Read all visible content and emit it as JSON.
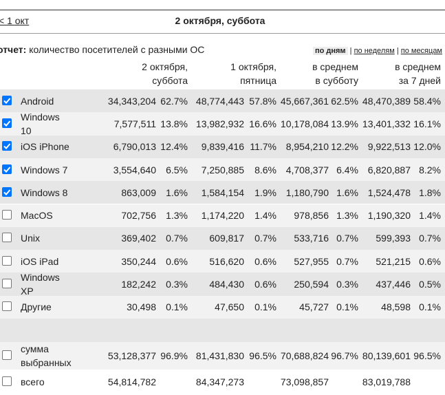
{
  "nav": {
    "prev": "< 1 окт",
    "title": "2 октября, суббота"
  },
  "report": {
    "label": "отчет:",
    "text": "количество посетителей с разными ОС",
    "periods": [
      "по дням",
      "по неделям",
      "по месяцам"
    ],
    "separator": "|"
  },
  "table": {
    "columns": [
      [
        "2 октября,",
        "суббота"
      ],
      [
        "1 октября,",
        "пятница"
      ],
      [
        "в среднем",
        "в субботу"
      ],
      [
        "в среднем",
        "за 7 дней"
      ]
    ],
    "rows": [
      {
        "name": "Android",
        "checked": true,
        "values": [
          "34,343,204",
          "48,774,443",
          "45,667,361",
          "48,470,389"
        ],
        "shares": [
          "62.7%",
          "57.8%",
          "62.5%",
          "58.4%"
        ]
      },
      {
        "name": "Windows 10",
        "checked": true,
        "values": [
          "7,577,511",
          "13,982,932",
          "10,178,084",
          "13,401,332"
        ],
        "shares": [
          "13.8%",
          "16.6%",
          "13.9%",
          "16.1%"
        ]
      },
      {
        "name": "iOS iPhone",
        "checked": true,
        "values": [
          "6,790,013",
          "9,839,416",
          "8,954,210",
          "9,922,513"
        ],
        "shares": [
          "12.4%",
          "11.7%",
          "12.2%",
          "12.0%"
        ]
      },
      {
        "name": "Windows 7",
        "checked": true,
        "values": [
          "3,554,640",
          "7,250,885",
          "4,708,377",
          "6,820,887"
        ],
        "shares": [
          "6.5%",
          "8.6%",
          "6.4%",
          "8.2%"
        ]
      },
      {
        "name": "Windows 8",
        "checked": true,
        "values": [
          "863,009",
          "1,584,154",
          "1,180,790",
          "1,524,478"
        ],
        "shares": [
          "1.6%",
          "1.9%",
          "1.6%",
          "1.8%"
        ]
      },
      {
        "name": "MacOS",
        "checked": false,
        "values": [
          "702,756",
          "1,174,220",
          "978,856",
          "1,190,320"
        ],
        "shares": [
          "1.3%",
          "1.4%",
          "1.3%",
          "1.4%"
        ]
      },
      {
        "name": "Unix",
        "checked": false,
        "values": [
          "369,402",
          "609,817",
          "533,716",
          "599,393"
        ],
        "shares": [
          "0.7%",
          "0.7%",
          "0.7%",
          "0.7%"
        ]
      },
      {
        "name": "iOS iPad",
        "checked": false,
        "values": [
          "350,244",
          "516,620",
          "527,955",
          "521,215"
        ],
        "shares": [
          "0.6%",
          "0.6%",
          "0.7%",
          "0.6%"
        ]
      },
      {
        "name": "Windows XP",
        "checked": false,
        "values": [
          "182,242",
          "484,430",
          "250,594",
          "437,446"
        ],
        "shares": [
          "0.3%",
          "0.6%",
          "0.3%",
          "0.5%"
        ]
      },
      {
        "name": "Другие",
        "checked": false,
        "values": [
          "30,498",
          "47,650",
          "45,727",
          "48,598"
        ],
        "shares": [
          "0.1%",
          "0.1%",
          "0.1%",
          "0.1%"
        ]
      }
    ],
    "sum": {
      "name": "сумма выбранных",
      "checked": false,
      "values": [
        "53,128,377",
        "81,431,830",
        "70,688,824",
        "80,139,601"
      ],
      "shares": [
        "96.9%",
        "96.5%",
        "96.7%",
        "96.5%"
      ]
    },
    "total": {
      "name": "всего",
      "checked": false,
      "values": [
        "54,814,782",
        "84,347,273",
        "73,098,857",
        "83,019,788"
      ]
    }
  }
}
